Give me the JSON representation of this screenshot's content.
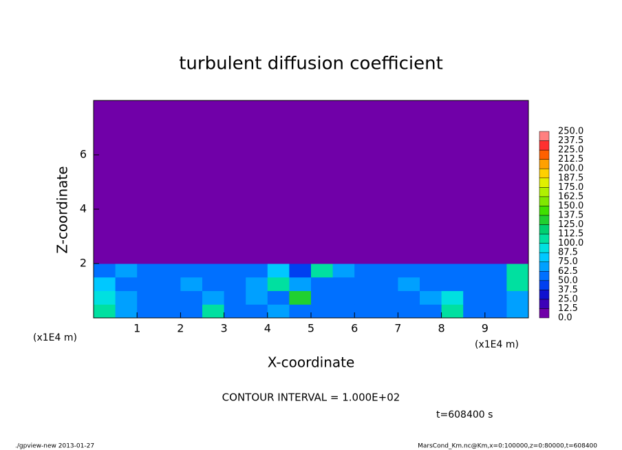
{
  "chart_data": {
    "type": "contour",
    "title": "turbulent diffusion coefficient",
    "x_label": "X-coordinate",
    "y_label": "Z-coordinate",
    "x_unit_label": "(x1E4 m)",
    "annotation": "CONTOUR INTERVAL = 1.000E+02",
    "time_label": "t=608400 s",
    "footer_left": "./gpview-new  2013-01-27",
    "footer_right": "MarsCond_Km.nc@Km,x=0:100000,z=0:80000,t=608400",
    "xlim": [
      0,
      10
    ],
    "ylim": [
      0,
      8
    ],
    "xticks": [
      1,
      2,
      3,
      4,
      5,
      6,
      7,
      8,
      9
    ],
    "yticks": [
      2,
      4,
      6
    ],
    "x_edges": [
      0,
      0.5,
      1,
      1.5,
      2,
      2.5,
      3,
      3.5,
      4,
      4.5,
      5,
      5.5,
      6,
      6.5,
      7,
      7.5,
      8,
      8.5,
      9,
      9.5,
      10
    ],
    "y_edges": [
      0,
      0.5,
      1,
      1.5,
      2,
      8
    ],
    "z": [
      [
        110,
        70,
        55,
        60,
        55,
        100,
        60,
        55,
        70,
        55,
        60,
        55,
        50,
        55,
        60,
        55,
        100,
        60,
        55,
        70
      ],
      [
        90,
        65,
        55,
        50,
        60,
        65,
        60,
        70,
        55,
        130,
        60,
        55,
        55,
        60,
        55,
        70,
        90,
        60,
        55,
        65
      ],
      [
        75,
        60,
        55,
        60,
        70,
        60,
        60,
        65,
        100,
        65,
        55,
        60,
        55,
        60,
        65,
        55,
        60,
        60,
        60,
        100
      ],
      [
        60,
        65,
        55,
        50,
        50,
        55,
        55,
        60,
        75,
        45,
        110,
        70,
        60,
        55,
        55,
        55,
        50,
        55,
        60,
        110
      ],
      [
        0,
        0,
        0,
        0,
        0,
        0,
        0,
        0,
        0,
        0,
        0,
        0,
        0,
        0,
        0,
        0,
        0,
        0,
        0,
        0
      ]
    ],
    "levels": [
      {
        "value": 0,
        "label": "0.0"
      },
      12.5,
      {
        "value": 25,
        "label": "25.0"
      },
      37.5,
      {
        "value": 50,
        "label": "50.0"
      },
      62.5,
      {
        "value": 75,
        "label": "75.0"
      },
      87.5,
      {
        "value": 100,
        "label": "100.0"
      },
      112.5,
      {
        "value": 125,
        "label": "125.0"
      },
      137.5,
      {
        "value": 150,
        "label": "150.0"
      },
      162.5,
      {
        "value": 175,
        "label": "175.0"
      },
      187.5,
      {
        "value": 200,
        "label": "200.0"
      },
      212.5,
      {
        "value": 225,
        "label": "225.0"
      },
      237.5,
      {
        "value": 250,
        "label": "250.0"
      }
    ],
    "colors": [
      "#7000a8",
      "#3c00b8",
      "#1010d0",
      "#0040f0",
      "#0070ff",
      "#00a0ff",
      "#00c8ff",
      "#00e0e0",
      "#00e0a0",
      "#00d070",
      "#20d030",
      "#40e000",
      "#80e800",
      "#b0f000",
      "#e0f000",
      "#ffd000",
      "#ffa000",
      "#ff6000",
      "#ff3030",
      "#ff8080"
    ]
  }
}
